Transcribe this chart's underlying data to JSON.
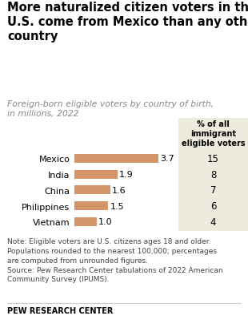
{
  "title": "More naturalized citizen voters in the\nU.S. come from Mexico than any other\ncountry",
  "subtitle": "Foreign-born eligible voters by country of birth,\nin millions, 2022",
  "countries": [
    "Mexico",
    "India",
    "China",
    "Philippines",
    "Vietnam"
  ],
  "values": [
    3.7,
    1.9,
    1.6,
    1.5,
    1.0
  ],
  "percentages": [
    "15",
    "8",
    "7",
    "6",
    "4"
  ],
  "bar_color": "#D4956A",
  "pct_col_header": "% of all\nimmigrant\neligible voters",
  "pct_col_bg": "#EDEADE",
  "note_line1": "Note: Eligible voters are U.S. citizens ages 18 and older.",
  "note_line2": "Populations rounded to the nearest 100,000; percentages",
  "note_line3": "are computed from unrounded figures.",
  "note_line4": "Source: Pew Research Center tabulations of 2022 American",
  "note_line5": "Community Survey (IPUMS).",
  "footer": "PEW RESEARCH CENTER",
  "bg_color": "#FFFFFF",
  "title_fontsize": 10.5,
  "subtitle_fontsize": 7.8,
  "bar_label_fontsize": 8.0,
  "country_fontsize": 8.0,
  "pct_header_fontsize": 7.0,
  "pct_val_fontsize": 8.5,
  "note_fontsize": 6.5,
  "footer_fontsize": 7.0
}
